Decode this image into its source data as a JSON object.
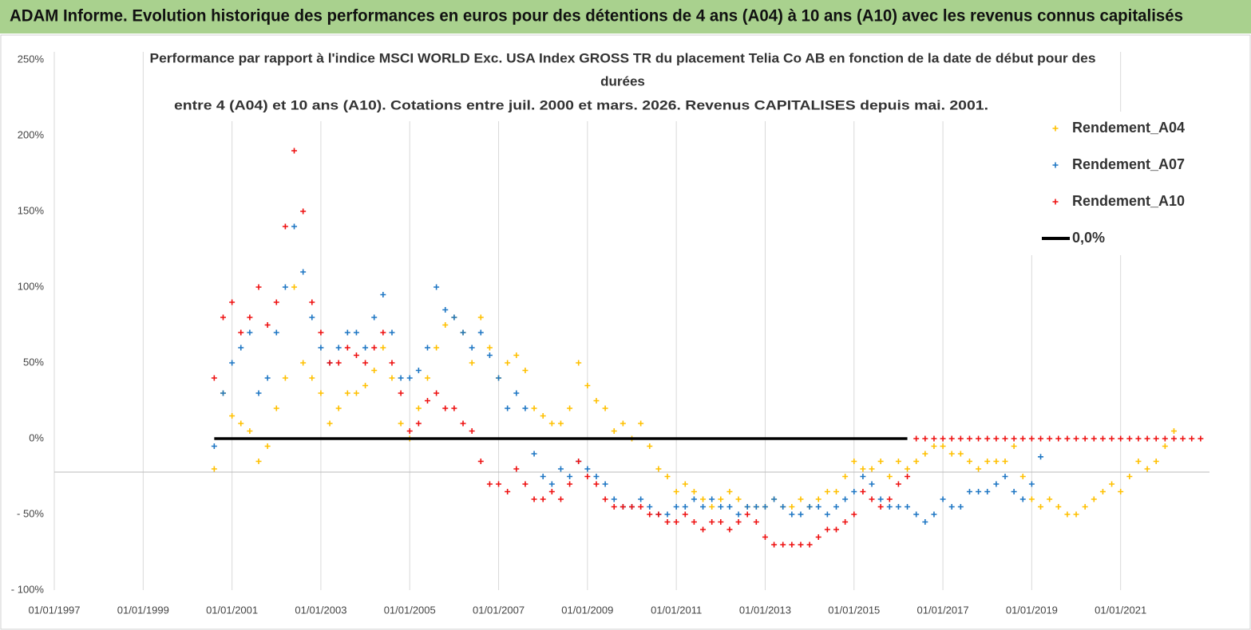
{
  "chart_data": {
    "type": "scatter",
    "header": "ADAM Informe. Evolution historique des performances en euros pour des détentions de 4 ans (A04) à 10 ans (A10) avec les revenus connus capitalisés",
    "title_lines": [
      "Performance par rapport à l'indice MSCI WORLD Exc. USA Index GROSS TR  du placement Telia Co AB en fonction de la date de début pour des",
      "durées",
      "entre 4 (A04) et 10 ans (A10). Cotations entre juil. 2000 et mars. 2026. Revenus CAPITALISES depuis mai. 2001."
    ],
    "xlim": [
      1997,
      2023
    ],
    "xticks": [
      {
        "value": 1997,
        "label": "01/01/1997"
      },
      {
        "value": 1999,
        "label": "01/01/1999"
      },
      {
        "value": 2001,
        "label": "01/01/2001"
      },
      {
        "value": 2003,
        "label": "01/01/2003"
      },
      {
        "value": 2005,
        "label": "01/01/2005"
      },
      {
        "value": 2007,
        "label": "01/01/2007"
      },
      {
        "value": 2009,
        "label": "01/01/2009"
      },
      {
        "value": 2011,
        "label": "01/01/2011"
      },
      {
        "value": 2013,
        "label": "01/01/2013"
      },
      {
        "value": 2015,
        "label": "01/01/2015"
      },
      {
        "value": 2017,
        "label": "01/01/2017"
      },
      {
        "value": 2019,
        "label": "01/01/2019"
      },
      {
        "value": 2021,
        "label": "01/01/2021"
      }
    ],
    "ylim": [
      -100,
      250
    ],
    "yticks": [
      {
        "value": -100,
        "label": "- 100%"
      },
      {
        "value": -50,
        "label": "- 50%"
      },
      {
        "value": 0,
        "label": "0%"
      },
      {
        "value": 50,
        "label": "50%"
      },
      {
        "value": 100,
        "label": "100%"
      },
      {
        "value": 150,
        "label": "150%"
      },
      {
        "value": 200,
        "label": "200%"
      },
      {
        "value": 250,
        "label": "250%"
      }
    ],
    "grid": "x",
    "legend": "upper right",
    "x": [
      2000.6,
      2000.8,
      2001,
      2001.2,
      2001.4,
      2001.6,
      2001.8,
      2002,
      2002.2,
      2002.4,
      2002.6,
      2002.8,
      2003,
      2003.2,
      2003.4,
      2003.6,
      2003.8,
      2004,
      2004.2,
      2004.4,
      2004.6,
      2004.8,
      2005,
      2005.2,
      2005.4,
      2005.6,
      2005.8,
      2006,
      2006.2,
      2006.4,
      2006.6,
      2006.8,
      2007,
      2007.2,
      2007.4,
      2007.6,
      2007.8,
      2008,
      2008.2,
      2008.4,
      2008.6,
      2008.8,
      2009,
      2009.2,
      2009.4,
      2009.6,
      2009.8,
      2010,
      2010.2,
      2010.4,
      2010.6,
      2010.8,
      2011,
      2011.2,
      2011.4,
      2011.6,
      2011.8,
      2012,
      2012.2,
      2012.4,
      2012.6,
      2012.8,
      2013,
      2013.2,
      2013.4,
      2013.6,
      2013.8,
      2014,
      2014.2,
      2014.4,
      2014.6,
      2014.8,
      2015,
      2015.2,
      2015.4,
      2015.6,
      2015.8,
      2016,
      2016.2,
      2016.4,
      2016.6,
      2016.8,
      2017,
      2017.2,
      2017.4,
      2017.6,
      2017.8,
      2018,
      2018.2,
      2018.4,
      2018.6,
      2018.8,
      2019,
      2019.2,
      2019.4,
      2019.6,
      2019.8,
      2020,
      2020.2,
      2020.4,
      2020.6,
      2020.8,
      2021,
      2021.2,
      2021.4,
      2021.6,
      2021.8,
      2022,
      2022.2,
      2022.4,
      2022.6,
      2022.8
    ],
    "series": [
      {
        "name": "Rendement_A04",
        "color": "#ffc000",
        "style": "marker",
        "values": [
          -20,
          30,
          15,
          10,
          5,
          -15,
          -5,
          20,
          40,
          100,
          50,
          40,
          30,
          10,
          20,
          30,
          30,
          35,
          45,
          60,
          40,
          10,
          0,
          20,
          40,
          60,
          75,
          80,
          70,
          50,
          80,
          60,
          40,
          50,
          55,
          45,
          20,
          15,
          10,
          10,
          20,
          50,
          35,
          25,
          20,
          5,
          10,
          0,
          10,
          -5,
          -20,
          -25,
          -35,
          -30,
          -35,
          -40,
          -45,
          -40,
          -35,
          -40,
          -45,
          -45,
          -45,
          -40,
          -45,
          -45,
          -40,
          -45,
          -40,
          -35,
          -35,
          -25,
          -15,
          -20,
          -20,
          -15,
          -25,
          -15,
          -20,
          -15,
          -10,
          -5,
          -5,
          -10,
          -10,
          -15,
          -20,
          -15,
          -15,
          -15,
          -5,
          -25,
          -40,
          -45,
          -40,
          -45,
          -50,
          -50,
          -45,
          -40,
          -35,
          -30,
          -35,
          -25,
          -15,
          -20,
          -15,
          -5,
          5,
          null,
          null,
          null
        ]
      },
      {
        "name": "Rendement_A07",
        "color": "#1f77c4",
        "style": "marker",
        "values": [
          -5,
          30,
          50,
          60,
          70,
          30,
          40,
          70,
          100,
          140,
          110,
          80,
          60,
          50,
          60,
          70,
          70,
          60,
          80,
          95,
          70,
          40,
          40,
          45,
          60,
          100,
          85,
          80,
          70,
          60,
          70,
          55,
          40,
          20,
          30,
          20,
          -10,
          -25,
          -30,
          -20,
          -25,
          -15,
          -20,
          -25,
          -30,
          -40,
          -45,
          -45,
          -40,
          -45,
          -50,
          -50,
          -45,
          -45,
          -40,
          -45,
          -40,
          -45,
          -45,
          -50,
          -45,
          -45,
          -45,
          -40,
          -45,
          -50,
          -50,
          -45,
          -45,
          -50,
          -45,
          -40,
          -35,
          -25,
          -30,
          -40,
          -45,
          -45,
          -45,
          -50,
          -55,
          -50,
          -40,
          -45,
          -45,
          -35,
          -35,
          -35,
          -30,
          -25,
          -35,
          -40,
          -30,
          -12,
          null,
          null,
          null,
          null,
          null,
          null,
          null,
          null,
          null,
          null,
          null,
          null,
          null,
          null,
          null,
          null,
          null,
          null
        ]
      },
      {
        "name": "Rendement_A10",
        "color": "#ee1111",
        "style": "marker",
        "values": [
          40,
          80,
          90,
          70,
          80,
          100,
          75,
          90,
          140,
          190,
          150,
          90,
          70,
          50,
          50,
          60,
          55,
          50,
          60,
          70,
          50,
          30,
          5,
          10,
          25,
          30,
          20,
          20,
          10,
          5,
          -15,
          -30,
          -30,
          -35,
          -20,
          -30,
          -40,
          -40,
          -35,
          -40,
          -30,
          -15,
          -25,
          -30,
          -40,
          -45,
          -45,
          -45,
          -45,
          -50,
          -50,
          -55,
          -55,
          -50,
          -55,
          -60,
          -55,
          -55,
          -60,
          -55,
          -50,
          -55,
          -65,
          -70,
          -70,
          -70,
          -70,
          -70,
          -65,
          -60,
          -60,
          -55,
          -50,
          -35,
          -40,
          -45,
          -40,
          -30,
          -25,
          0,
          0,
          0,
          0,
          0,
          0,
          0,
          0,
          0,
          0,
          0,
          0,
          0,
          0,
          0,
          0,
          0,
          0,
          0,
          0,
          0,
          0,
          0,
          0,
          0,
          0,
          0,
          0,
          0,
          0,
          0,
          0,
          0
        ]
      },
      {
        "name": "0,0%",
        "color": "#000000",
        "style": "line",
        "values": [
          0,
          0,
          0,
          0,
          0,
          0,
          0,
          0,
          0,
          0,
          0,
          0,
          0,
          0,
          0,
          0,
          0,
          0,
          0,
          0,
          0,
          0,
          0,
          0,
          0,
          0,
          0,
          0,
          0,
          0,
          0,
          0,
          0,
          0,
          0,
          0,
          0,
          0,
          0,
          0,
          0,
          0,
          0,
          0,
          0,
          0,
          0,
          0,
          0,
          0,
          0,
          0,
          0,
          0,
          0,
          0,
          0,
          0,
          0,
          0,
          0,
          0,
          0,
          0,
          0,
          0,
          0,
          0,
          0,
          0,
          0,
          0,
          0,
          0,
          0,
          0,
          0,
          0,
          0,
          null,
          null,
          null,
          null,
          null,
          null,
          null,
          null,
          null,
          null,
          null,
          null,
          null,
          null,
          null,
          null,
          null,
          null,
          null,
          null,
          null,
          null,
          null,
          null,
          null,
          null,
          null,
          null,
          null,
          null,
          null,
          null,
          null
        ]
      }
    ]
  }
}
